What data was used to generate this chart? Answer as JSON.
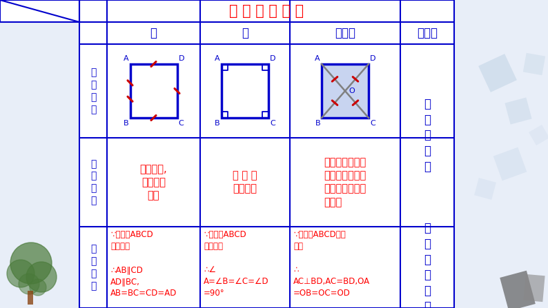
{
  "title": "正 方 形 的 性 质",
  "title_color": "#FF0000",
  "border_color": "#0000CC",
  "bg_color": "#E8EEF8",
  "table_bg": "#FFFFFF",
  "col_headers": [
    "边",
    "角",
    "对角线",
    "对称性"
  ],
  "row_header1": "图\n形\n语\n言",
  "row_header2": "文\n字\n语\n言",
  "row_header3": "符\n号\n语\n言",
  "r2c1": "对边平行,\n四条边都\n相等",
  "r2c2": "四 个 角\n都是直角",
  "r2c3": "对角线互相垂直\n平分且相等，每\n条对角线平分一\n组对角",
  "r3c1": "∵四边形ABCD\n是正方形\n\n∴AB∥CD\nAD∥BC,\nAB=BC=CD=AD",
  "r3c2": "∵四边形ABCD\n是正方形\n\n∴∠\nA=∠B=∠C=∠D\n=90°",
  "r3c3": "∵四边形ABCD是正\n方形\n\n∴\nAC⊥BD,AC=BD,OA\n=OB=OC=OD",
  "sym1": "轴\n对\n称\n图\n形",
  "sym2": "中\n心\n对\n称\n图\n形",
  "blue_diag_color": "#0000CC",
  "red_tick_color": "#CC0000",
  "diag_fill_color": "#C8D4F0",
  "diag_line_color": "#808080"
}
